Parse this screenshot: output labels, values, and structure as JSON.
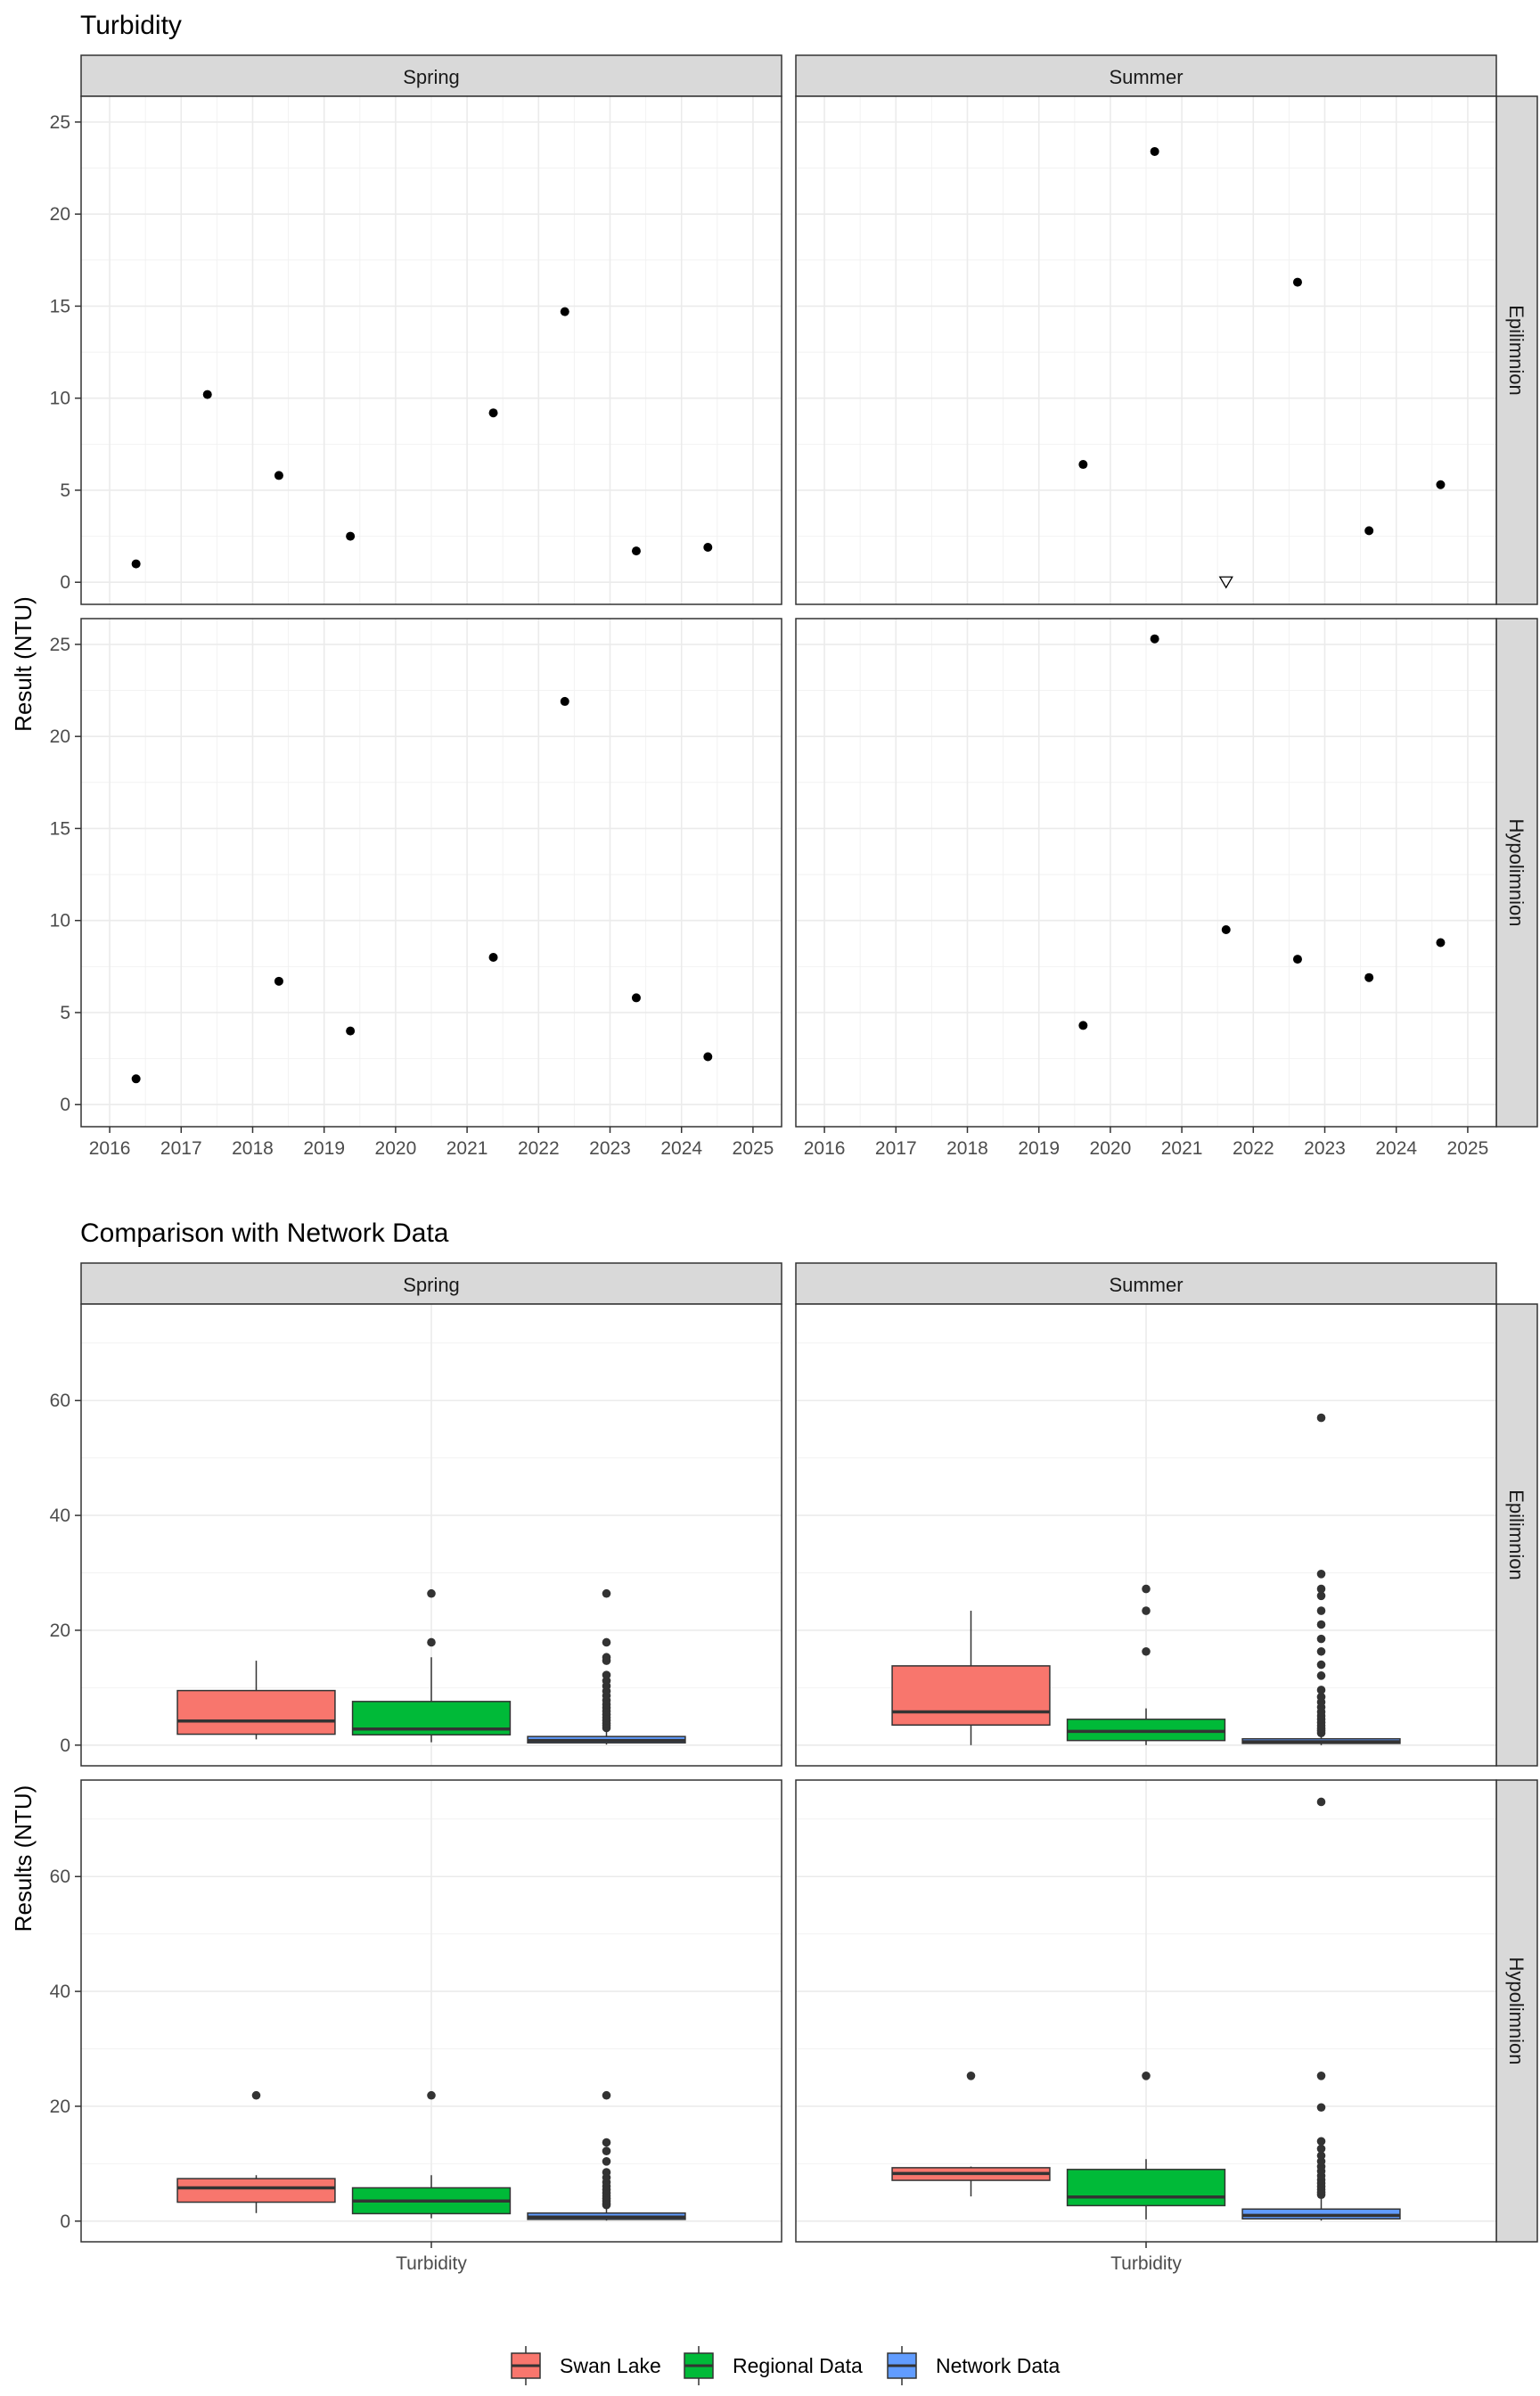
{
  "chart_data": [
    {
      "type": "scatter",
      "title": "Turbidity",
      "ylabel": "Result (NTU)",
      "xlabel": "",
      "xlim": [
        2015.6,
        2025.4
      ],
      "ylim": [
        -1.2,
        26.4
      ],
      "x_ticks": [
        "2016",
        "2017",
        "2018",
        "2019",
        "2020",
        "2021",
        "2022",
        "2023",
        "2024",
        "2025"
      ],
      "y_ticks": [
        "0",
        "5",
        "10",
        "15",
        "20",
        "25"
      ],
      "grid": true,
      "facet_columns": [
        "Spring",
        "Summer"
      ],
      "facet_rows": [
        "Epilimnion",
        "Hypolimnion"
      ],
      "panels": [
        {
          "season": "Spring",
          "layer": "Epilimnion",
          "points": [
            {
              "x": "2016-05-15",
              "y": 1.0
            },
            {
              "x": "2017-05-15",
              "y": 10.2
            },
            {
              "x": "2018-05-15",
              "y": 5.8
            },
            {
              "x": "2019-05-15",
              "y": 2.5
            },
            {
              "x": "2021-05-15",
              "y": 9.2
            },
            {
              "x": "2022-05-15",
              "y": 14.7
            },
            {
              "x": "2023-05-15",
              "y": 1.7
            },
            {
              "x": "2024-05-15",
              "y": 1.9
            }
          ]
        },
        {
          "season": "Summer",
          "layer": "Epilimnion",
          "points": [
            {
              "x": "2019-08-15",
              "y": 6.4
            },
            {
              "x": "2020-08-15",
              "y": 23.4
            },
            {
              "x": "2021-08-15",
              "y": 0.0,
              "marker": "triangle-down"
            },
            {
              "x": "2022-08-15",
              "y": 16.3
            },
            {
              "x": "2023-08-15",
              "y": 2.8
            },
            {
              "x": "2024-08-15",
              "y": 5.3
            }
          ]
        },
        {
          "season": "Spring",
          "layer": "Hypolimnion",
          "points": [
            {
              "x": "2016-05-15",
              "y": 1.4
            },
            {
              "x": "2018-05-15",
              "y": 6.7
            },
            {
              "x": "2019-05-15",
              "y": 4.0
            },
            {
              "x": "2021-05-15",
              "y": 8.0
            },
            {
              "x": "2022-05-15",
              "y": 21.9
            },
            {
              "x": "2023-05-15",
              "y": 5.8
            },
            {
              "x": "2024-05-15",
              "y": 2.6
            }
          ]
        },
        {
          "season": "Summer",
          "layer": "Hypolimnion",
          "points": [
            {
              "x": "2019-08-15",
              "y": 4.3
            },
            {
              "x": "2020-08-15",
              "y": 25.3
            },
            {
              "x": "2021-08-15",
              "y": 9.5
            },
            {
              "x": "2022-08-15",
              "y": 7.9
            },
            {
              "x": "2023-08-15",
              "y": 6.9
            },
            {
              "x": "2024-08-15",
              "y": 8.8
            }
          ]
        }
      ]
    },
    {
      "type": "box",
      "title": "Comparison with Network Data",
      "ylabel": "Results (NTU)",
      "xlabel": "",
      "categories": [
        "Turbidity"
      ],
      "ylim": [
        -3.6,
        76.8
      ],
      "y_ticks": [
        "0",
        "20",
        "40",
        "60"
      ],
      "grid": true,
      "legend_position": "bottom",
      "facet_columns": [
        "Spring",
        "Summer"
      ],
      "facet_rows": [
        "Epilimnion",
        "Hypolimnion"
      ],
      "series": [
        {
          "name": "Swan Lake",
          "color": "#F8766D"
        },
        {
          "name": "Regional Data",
          "color": "#00BA38"
        },
        {
          "name": "Network Data",
          "color": "#619CFF"
        }
      ],
      "panels": [
        {
          "season": "Spring",
          "layer": "Epilimnion",
          "boxes": [
            {
              "series": "Swan Lake",
              "min": 1.0,
              "q1": 1.9,
              "median": 4.2,
              "q3": 9.5,
              "max": 14.7,
              "outliers": []
            },
            {
              "series": "Regional Data",
              "min": 0.5,
              "q1": 1.8,
              "median": 2.8,
              "q3": 7.6,
              "max": 15.3,
              "outliers": [
                17.9,
                26.4
              ]
            },
            {
              "series": "Network Data",
              "min": 0.1,
              "q1": 0.4,
              "median": 0.8,
              "q3": 1.5,
              "max": 2.7,
              "outliers": [
                3.0,
                3.4,
                3.8,
                4.3,
                4.8,
                5.3,
                5.9,
                6.5,
                7.1,
                7.8,
                8.6,
                9.4,
                10.3,
                11.2,
                12.2,
                14.7,
                15.3,
                17.9,
                26.4
              ]
            }
          ]
        },
        {
          "season": "Summer",
          "layer": "Epilimnion",
          "boxes": [
            {
              "series": "Swan Lake",
              "min": 0.0,
              "q1": 3.5,
              "median": 5.8,
              "q3": 13.8,
              "max": 23.4,
              "outliers": []
            },
            {
              "series": "Regional Data",
              "min": 0.0,
              "q1": 0.8,
              "median": 2.4,
              "q3": 4.5,
              "max": 6.4,
              "outliers": [
                16.3,
                23.4,
                27.2
              ]
            },
            {
              "series": "Network Data",
              "min": 0.0,
              "q1": 0.3,
              "median": 0.6,
              "q3": 1.1,
              "max": 1.9,
              "outliers": [
                2.1,
                2.5,
                2.9,
                3.4,
                3.9,
                4.5,
                5.1,
                5.8,
                6.6,
                7.5,
                8.4,
                9.6,
                12.1,
                14.0,
                16.3,
                18.5,
                21.0,
                23.4,
                26.0,
                27.2,
                29.8,
                57.0
              ]
            }
          ]
        },
        {
          "season": "Spring",
          "layer": "Hypolimnion",
          "boxes": [
            {
              "series": "Swan Lake",
              "min": 1.4,
              "q1": 3.3,
              "median": 5.8,
              "q3": 7.4,
              "max": 8.0,
              "outliers": [
                21.9
              ]
            },
            {
              "series": "Regional Data",
              "min": 0.5,
              "q1": 1.3,
              "median": 3.5,
              "q3": 5.8,
              "max": 8.0,
              "outliers": [
                21.9
              ]
            },
            {
              "series": "Network Data",
              "min": 0.1,
              "q1": 0.3,
              "median": 0.7,
              "q3": 1.4,
              "max": 2.5,
              "outliers": [
                2.8,
                3.1,
                3.5,
                3.9,
                4.4,
                4.9,
                5.5,
                6.1,
                6.8,
                7.6,
                8.5,
                10.4,
                12.2,
                13.7,
                21.9
              ]
            }
          ]
        },
        {
          "season": "Summer",
          "layer": "Hypolimnion",
          "boxes": [
            {
              "series": "Swan Lake",
              "min": 4.3,
              "q1": 7.1,
              "median": 8.3,
              "q3": 9.3,
              "max": 9.5,
              "outliers": [
                25.3
              ]
            },
            {
              "series": "Regional Data",
              "min": 0.3,
              "q1": 2.7,
              "median": 4.2,
              "q3": 9.0,
              "max": 10.8,
              "outliers": [
                25.3
              ]
            },
            {
              "series": "Network Data",
              "min": 0.1,
              "q1": 0.4,
              "median": 1.0,
              "q3": 2.1,
              "max": 4.2,
              "outliers": [
                4.6,
                5.0,
                5.5,
                6.0,
                6.6,
                7.2,
                7.9,
                8.7,
                9.5,
                10.4,
                11.4,
                12.6,
                13.9,
                19.8,
                25.3,
                73.0
              ]
            }
          ]
        }
      ]
    }
  ]
}
